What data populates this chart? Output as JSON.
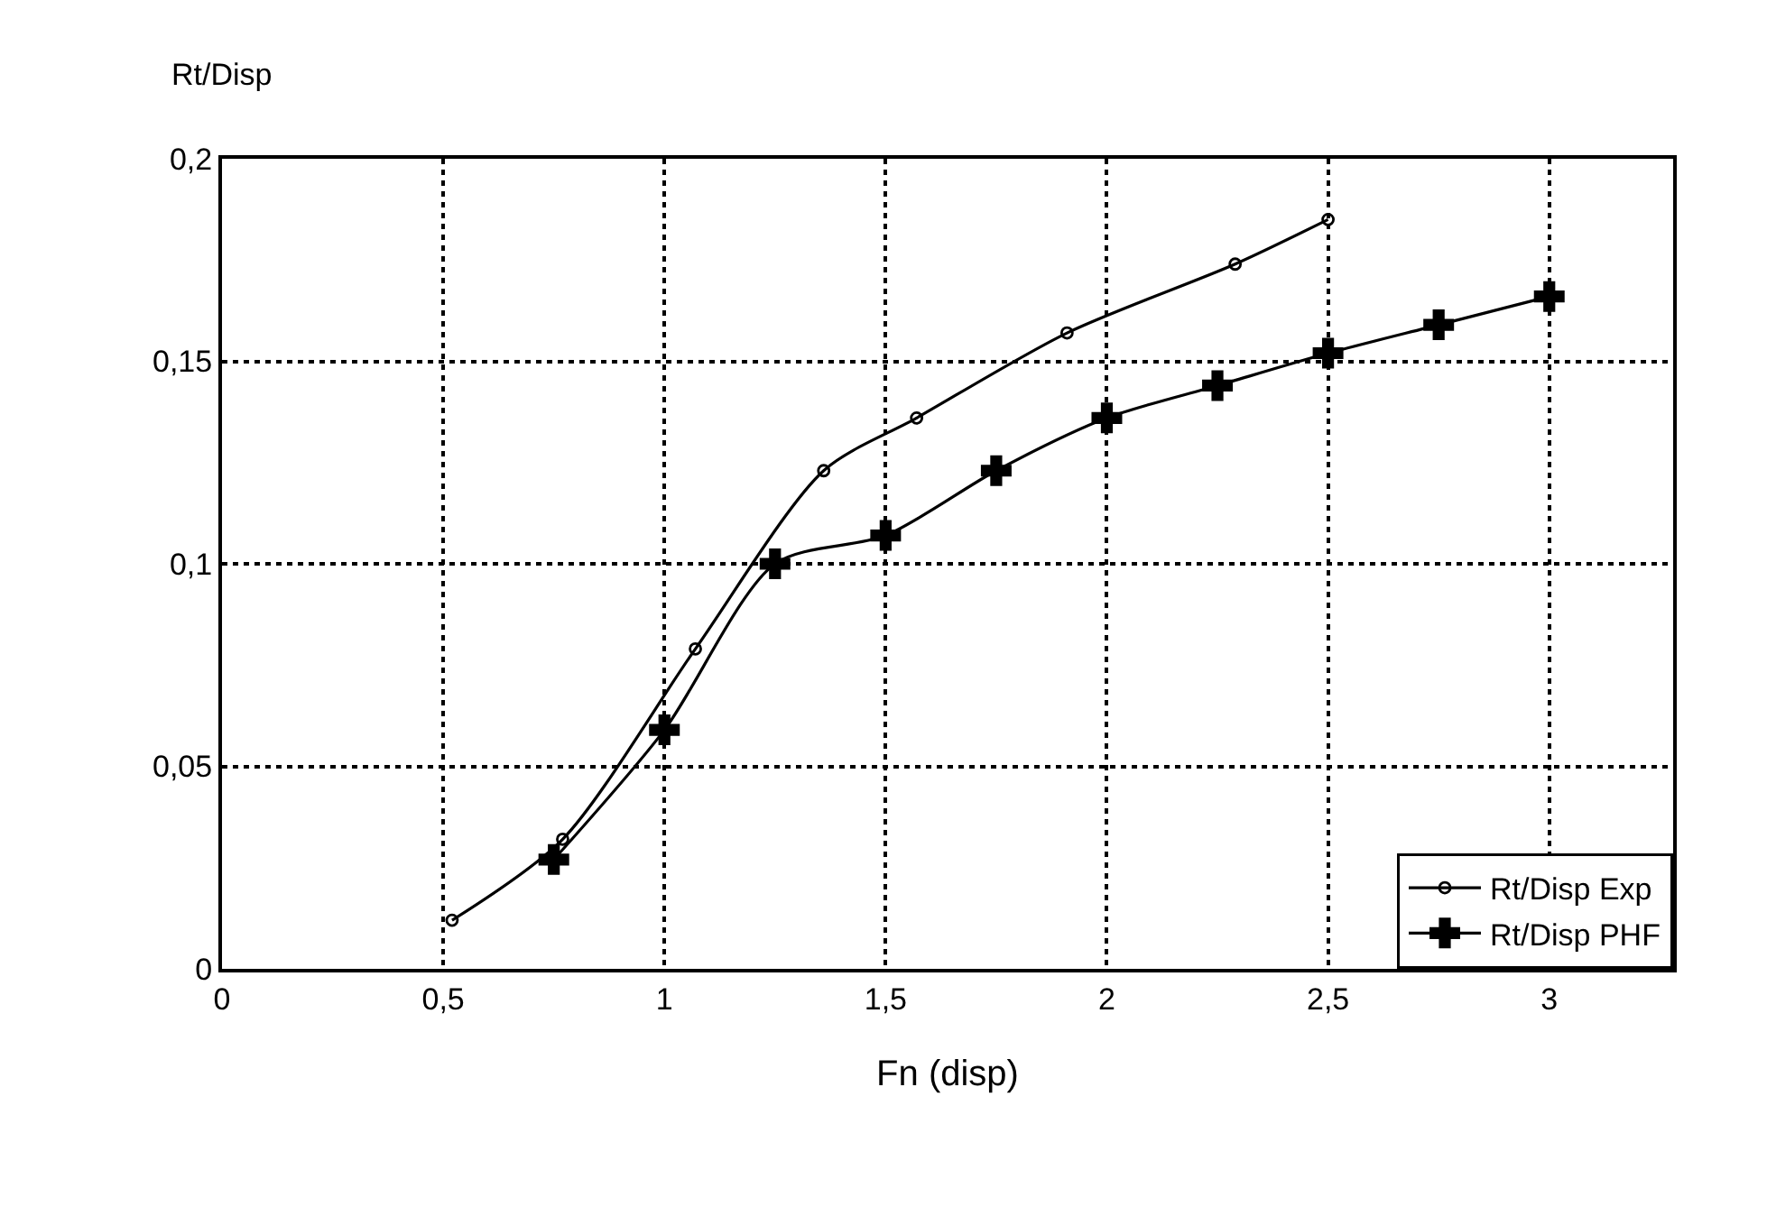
{
  "chart_data": {
    "type": "line",
    "ylabel": "Rt/Disp",
    "xlabel": "Fn (disp)",
    "series": [
      {
        "name": "Rt/Disp Exp",
        "color": "#000000",
        "marker": "circle",
        "x": [
          0.52,
          0.77,
          1.07,
          1.36,
          1.57,
          1.91,
          2.29,
          2.5
        ],
        "values": [
          0.012,
          0.032,
          0.079,
          0.123,
          0.136,
          0.157,
          0.174,
          0.185
        ]
      },
      {
        "name": "Rt/Disp PHF",
        "color": "#000000",
        "marker": "cross",
        "x": [
          0.75,
          1,
          1.25,
          1.5,
          1.75,
          2,
          2.25,
          2.5,
          2.75,
          3
        ],
        "values": [
          0.027,
          0.059,
          0.1,
          0.107,
          0.123,
          0.136,
          0.144,
          0.152,
          0.159,
          0.166
        ]
      }
    ],
    "xlim": [
      0,
      3.28
    ],
    "ylim": [
      0,
      0.2
    ],
    "xticks": [
      0,
      {
        "value": 0.5,
        "label": "0,5"
      },
      1,
      {
        "value": 1.5,
        "label": "1,5"
      },
      2,
      {
        "value": 2.5,
        "label": "2,5"
      },
      3
    ],
    "yticks": [
      0,
      {
        "value": 0.05,
        "label": "0,05"
      },
      {
        "value": 0.1,
        "label": "0,1"
      },
      {
        "value": 0.15,
        "label": "0,15"
      },
      {
        "value": 0.2,
        "label": "0,2"
      }
    ],
    "grid": true,
    "legend": "bottom right",
    "line_style": "solid"
  }
}
